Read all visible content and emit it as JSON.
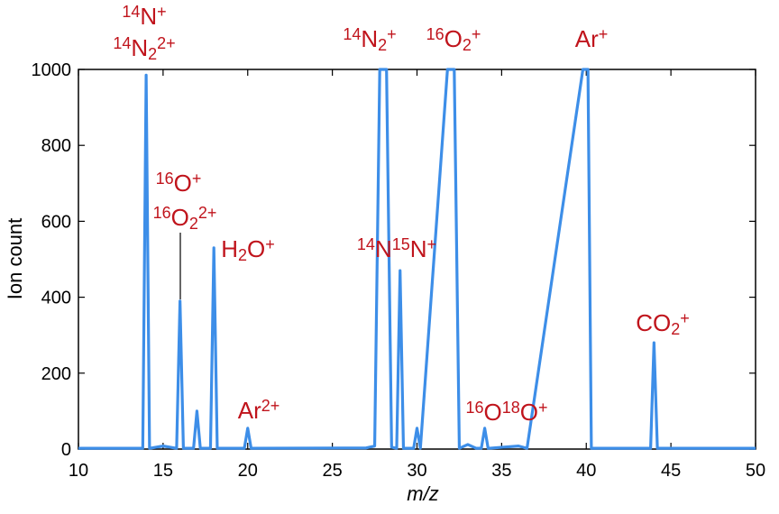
{
  "chart_data": {
    "type": "line",
    "xlabel": "m/z",
    "ylabel": "Ion count",
    "x": [
      10,
      13.8,
      14,
      14.2,
      15,
      15.8,
      16,
      16.2,
      16.8,
      17,
      17.2,
      17.8,
      18,
      18.2,
      19.8,
      20,
      20.2,
      27,
      27.5,
      27.8,
      28.2,
      28.5,
      28.8,
      29,
      29.2,
      29.8,
      30,
      30.2,
      31.8,
      32.2,
      32.5,
      33,
      33.5,
      33.8,
      34,
      34.2,
      36,
      36.5,
      39.8,
      40.1,
      40.3,
      43.8,
      44,
      44.2,
      50
    ],
    "values": [
      2,
      2,
      985,
      2,
      8,
      2,
      390,
      2,
      2,
      100,
      2,
      2,
      530,
      2,
      2,
      55,
      2,
      3,
      8,
      1000,
      1000,
      5,
      2,
      470,
      2,
      2,
      55,
      2,
      1000,
      1000,
      2,
      12,
      2,
      2,
      55,
      2,
      8,
      2,
      1000,
      1000,
      2,
      2,
      280,
      2,
      2
    ],
    "color": "#3d8ee8",
    "xlim": [
      10,
      50
    ],
    "xticks": [
      10,
      15,
      20,
      25,
      30,
      35,
      40,
      45,
      50
    ],
    "ylim": [
      0,
      1000
    ],
    "yticks": [
      0,
      200,
      400,
      600,
      800,
      1000
    ],
    "annotation_color": "#c0141c",
    "annotations": [
      [
        {
          "text": "14",
          "pos": "sup"
        },
        {
          "text": "N"
        },
        {
          "text": "+",
          "pos": "sup"
        }
      ],
      [
        {
          "text": "14",
          "pos": "sup"
        },
        {
          "text": "N"
        },
        {
          "text": "2",
          "pos": "sub"
        },
        {
          "text": "2+",
          "pos": "sup"
        }
      ],
      [
        {
          "text": "16",
          "pos": "sup"
        },
        {
          "text": "O"
        },
        {
          "text": "+",
          "pos": "sup"
        }
      ],
      [
        {
          "text": "16",
          "pos": "sup"
        },
        {
          "text": "O"
        },
        {
          "text": "2",
          "pos": "sub"
        },
        {
          "text": "2+",
          "pos": "sup"
        }
      ],
      [
        {
          "text": "H"
        },
        {
          "text": "2",
          "pos": "sub"
        },
        {
          "text": "O"
        },
        {
          "text": "+",
          "pos": "sup"
        }
      ],
      [
        {
          "text": "Ar"
        },
        {
          "text": "2+",
          "pos": "sup"
        }
      ],
      [
        {
          "text": "14",
          "pos": "sup"
        },
        {
          "text": "N"
        },
        {
          "text": "2",
          "pos": "sub"
        },
        {
          "text": "+",
          "pos": "sup"
        }
      ],
      [
        {
          "text": "16",
          "pos": "sup"
        },
        {
          "text": "O"
        },
        {
          "text": "2",
          "pos": "sub"
        },
        {
          "text": "+",
          "pos": "sup"
        }
      ],
      [
        {
          "text": "14",
          "pos": "sup"
        },
        {
          "text": "N"
        },
        {
          "text": "15",
          "pos": "sup"
        },
        {
          "text": "N"
        },
        {
          "text": "+",
          "pos": "sup"
        }
      ],
      [
        {
          "text": "Ar"
        },
        {
          "text": "+",
          "pos": "sup"
        }
      ],
      [
        {
          "text": "16",
          "pos": "sup"
        },
        {
          "text": "O"
        },
        {
          "text": "18",
          "pos": "sup"
        },
        {
          "text": "O"
        },
        {
          "text": "+",
          "pos": "sup"
        }
      ],
      [
        {
          "text": "CO"
        },
        {
          "text": "2",
          "pos": "sub"
        },
        {
          "text": "+",
          "pos": "sup"
        }
      ]
    ]
  }
}
